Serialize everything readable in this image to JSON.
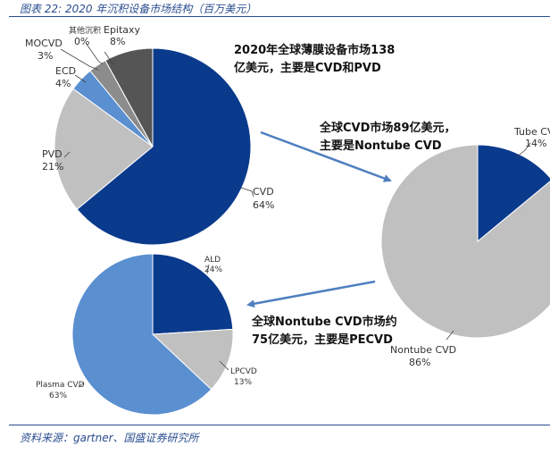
{
  "figure_title": "图表 22: 2020 年沉积设备市场结构（百万美元）",
  "source": "资料来源：gartner、国盛证券研究所",
  "notes": {
    "pie1": [
      "2020年全球薄膜设备市场138",
      "亿美元，主要是CVD和PVD"
    ],
    "pie2": [
      "全球CVD市场89亿美元，",
      "主要是Nontube CVD"
    ],
    "pie3": [
      "全球Nontube CVD市场约",
      "75亿美元，主要是PECVD"
    ]
  },
  "colors": {
    "dark_blue": "#0a3a8c",
    "gray": "#c0c0c0",
    "mid_blue": "#5a8fd0",
    "dark_gray": "#8c8c8c",
    "charcoal": "#555555",
    "light_gray": "#b5b5b5",
    "arrow": "#4f7fc0"
  },
  "chart_data": [
    {
      "type": "pie",
      "id": "thin-film-equipment",
      "slices": [
        {
          "name": "CVD",
          "value": 64,
          "label": "64%",
          "color": "#0a3a8c"
        },
        {
          "name": "PVD",
          "value": 21,
          "label": "21%",
          "color": "#c0c0c0"
        },
        {
          "name": "ECD",
          "value": 4,
          "label": "4%",
          "color": "#5a8fd0"
        },
        {
          "name": "MOCVD",
          "value": 3,
          "label": "3%",
          "color": "#8c8c8c"
        },
        {
          "name": "其他沉积",
          "value": 0,
          "label": "0%",
          "color": "#b5b5b5"
        },
        {
          "name": "Epitaxy",
          "value": 8,
          "label": "8%",
          "color": "#555555"
        }
      ]
    },
    {
      "type": "pie",
      "id": "cvd-market",
      "slices": [
        {
          "name": "Tube CVD",
          "value": 14,
          "label": "14%",
          "color": "#0a3a8c"
        },
        {
          "name": "Nontube CVD",
          "value": 86,
          "label": "86%",
          "color": "#c0c0c0"
        }
      ]
    },
    {
      "type": "pie",
      "id": "nontube-cvd-market",
      "slices": [
        {
          "name": "ALD",
          "value": 24,
          "label": "24%",
          "color": "#0a3a8c"
        },
        {
          "name": "LPCVD",
          "value": 13,
          "label": "13%",
          "color": "#c0c0c0"
        },
        {
          "name": "Plasma CVD",
          "value": 63,
          "label": "63%",
          "color": "#5a8fd0"
        }
      ]
    }
  ]
}
